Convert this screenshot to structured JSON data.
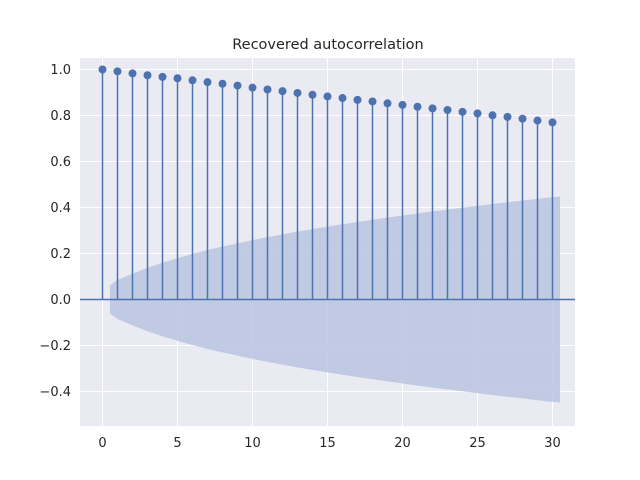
{
  "chart_data": {
    "type": "stem",
    "title": "Recovered autocorrelation",
    "xlabel": "",
    "ylabel": "",
    "xlim": [
      -1.5,
      31.5
    ],
    "ylim": [
      -0.55,
      1.05
    ],
    "grid": true,
    "x_ticks": [
      0,
      5,
      10,
      15,
      20,
      25,
      30
    ],
    "x_tick_labels": [
      "0",
      "5",
      "10",
      "15",
      "20",
      "25",
      "30"
    ],
    "y_ticks": [
      -0.4,
      -0.2,
      0.0,
      0.2,
      0.4,
      0.6,
      0.8,
      1.0
    ],
    "y_tick_labels": [
      "−0.4",
      "−0.2",
      "0.0",
      "0.2",
      "0.4",
      "0.6",
      "0.8",
      "1.0"
    ],
    "lags": [
      0,
      1,
      2,
      3,
      4,
      5,
      6,
      7,
      8,
      9,
      10,
      11,
      12,
      13,
      14,
      15,
      16,
      17,
      18,
      19,
      20,
      21,
      22,
      23,
      24,
      25,
      26,
      27,
      28,
      29,
      30
    ],
    "acf": [
      1.0,
      0.992,
      0.983,
      0.975,
      0.968,
      0.962,
      0.953,
      0.945,
      0.938,
      0.93,
      0.921,
      0.913,
      0.906,
      0.898,
      0.89,
      0.883,
      0.876,
      0.868,
      0.861,
      0.853,
      0.846,
      0.838,
      0.831,
      0.824,
      0.816,
      0.809,
      0.801,
      0.794,
      0.786,
      0.778,
      0.77
    ],
    "confidence_band": {
      "x": [
        0.5,
        1,
        2,
        3,
        4,
        5,
        6,
        7,
        8,
        9,
        10,
        11,
        12,
        13,
        14,
        15,
        16,
        17,
        18,
        19,
        20,
        21,
        22,
        23,
        24,
        25,
        26,
        27,
        28,
        29,
        30,
        30.5
      ],
      "upper": [
        0.062,
        0.085,
        0.112,
        0.138,
        0.16,
        0.18,
        0.198,
        0.215,
        0.23,
        0.244,
        0.258,
        0.271,
        0.283,
        0.295,
        0.306,
        0.317,
        0.327,
        0.337,
        0.347,
        0.356,
        0.365,
        0.374,
        0.383,
        0.391,
        0.399,
        0.407,
        0.415,
        0.423,
        0.43,
        0.438,
        0.445,
        0.448
      ]
    },
    "colors": {
      "stem": "#4c72b0",
      "band": "#b8c4e0",
      "background": "#eaeaf2",
      "grid": "#ffffff",
      "zero_line": "#4c72b0"
    }
  }
}
